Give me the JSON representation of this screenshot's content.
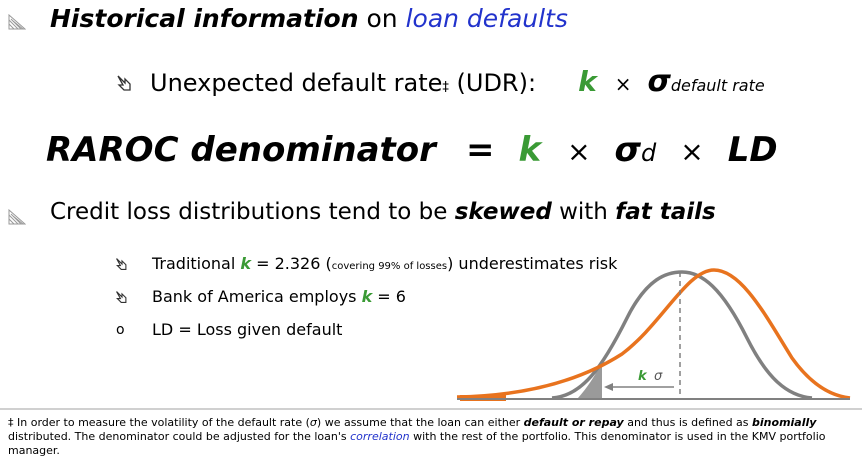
{
  "bullet1": {
    "part1": "Historical information",
    "part2": " on ",
    "part3": "loan defaults"
  },
  "sub1": {
    "text": "Unexpected default rate",
    "dagger": "‡",
    "paren": " (UDR):",
    "k": "k",
    "times": "×",
    "sigma": "σ",
    "sigma_sub": "default rate"
  },
  "formula": {
    "lhs": "RAROC denominator",
    "eq": "=",
    "k": "k",
    "times1": "×",
    "sigma": "σ",
    "sigma_sub": "d",
    "times2": "×",
    "ld": "LD"
  },
  "bullet2": {
    "part1": "Credit loss distributions tend to be ",
    "part2": "skewed",
    "part3": " with ",
    "part4": "fat tails"
  },
  "items": [
    {
      "pre": "Traditional ",
      "k": "k",
      "mid": " = 2.326 (",
      "note": "covering 99% of losses",
      "post": ") underestimates risk"
    },
    {
      "pre": "Bank of America employs ",
      "k": "k",
      "post": " = 6"
    },
    {
      "text": "LD = Loss given default"
    }
  ],
  "diagram": {
    "k_label": "k",
    "sigma_label": "σ",
    "colors": {
      "normal": "#808080",
      "skewed": "#e8731e",
      "dash": "#808080"
    }
  },
  "footnote": {
    "p1": "‡ In order to measure the volatility of the default rate (",
    "sigma": "σ",
    "p2": ") we assume that the loan can either ",
    "default": "default or repay",
    "p3": " and thus is defined as ",
    "binomially": "binomially",
    "p4": " distributed.  The denominator could be adjusted for the loan's ",
    "correlation": "correlation",
    "p5": " with the rest of the portfolio.  This denominator is used in the KMV portfolio manager."
  }
}
